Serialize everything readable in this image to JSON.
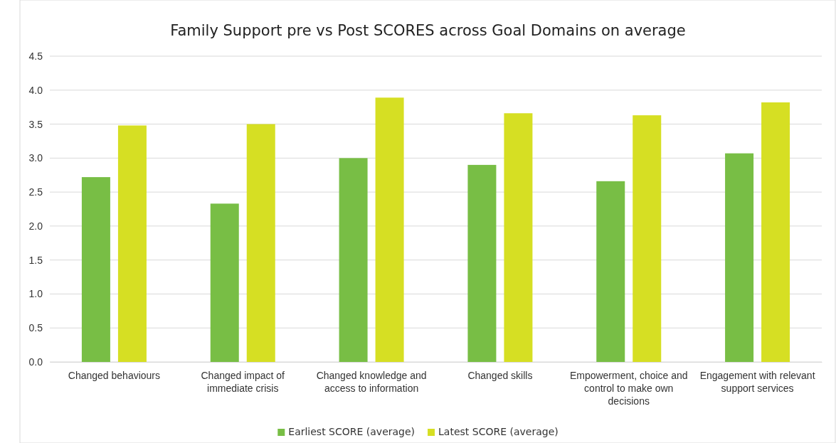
{
  "chart_data": {
    "type": "bar",
    "title": "Family Support pre vs Post SCORES across Goal Domains on average",
    "categories": [
      "Changed behaviours",
      "Changed impact of immediate crisis",
      "Changed knowledge and access to information",
      "Changed skills",
      "Empowerment, choice and control to make own decisions",
      "Engagement with relevant support services"
    ],
    "series": [
      {
        "name": "Earliest SCORE (average)",
        "color": "#78be45",
        "values": [
          2.72,
          2.33,
          3.0,
          2.9,
          2.66,
          3.07
        ]
      },
      {
        "name": "Latest SCORE (average)",
        "color": "#d6df23",
        "values": [
          3.48,
          3.5,
          3.89,
          3.66,
          3.63,
          3.82
        ]
      }
    ],
    "ylim": [
      0,
      4.5
    ],
    "yticks": [
      {
        "value": 0,
        "label": "0.0"
      },
      {
        "value": 0.5,
        "label": "0.5"
      },
      {
        "value": 1,
        "label": "1.0"
      },
      {
        "value": 1.5,
        "label": "1.5"
      },
      {
        "value": 2,
        "label": "2.0"
      },
      {
        "value": 2.5,
        "label": "2.5"
      },
      {
        "value": 3,
        "label": "3.0"
      },
      {
        "value": 3.5,
        "label": "3.5"
      },
      {
        "value": 4,
        "label": "4.0"
      },
      {
        "value": 4.5,
        "label": "4.5"
      }
    ],
    "grid": "y",
    "legend": "bottom"
  }
}
